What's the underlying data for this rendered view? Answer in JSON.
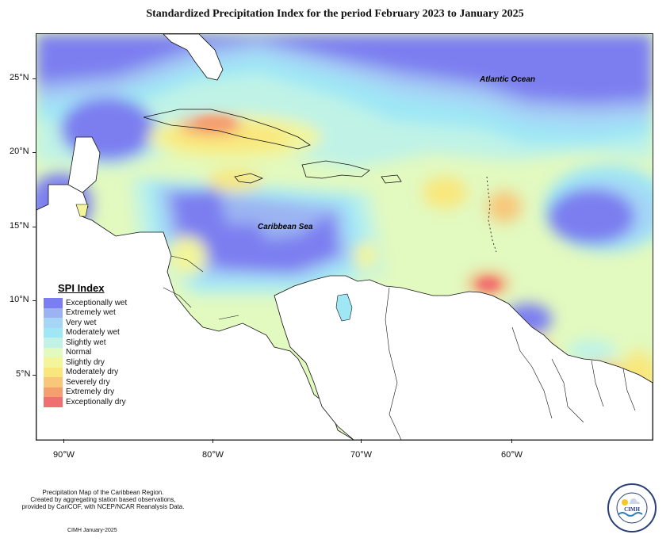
{
  "title": "Standardized Precipitation Index for the period February 2023 to January 2025",
  "lat_labels": [
    "25°N",
    "20°N",
    "15°N",
    "10°N",
    "5°N"
  ],
  "lon_labels": [
    "90°W",
    "80°W",
    "70°W",
    "60°W"
  ],
  "ocean_labels": {
    "atlantic": "Atlantic Ocean",
    "caribbean": "Caribbean Sea"
  },
  "legend": {
    "title": "SPI Index",
    "items": [
      {
        "label": "Exceptionally wet",
        "color": "#7b7ef0"
      },
      {
        "label": "Extremely wet",
        "color": "#9bb3f2"
      },
      {
        "label": "Very wet",
        "color": "#a5d6f6"
      },
      {
        "label": "Moderately wet",
        "color": "#9fe7f5"
      },
      {
        "label": "Slightly wet",
        "color": "#c0f3e6"
      },
      {
        "label": "Normal",
        "color": "#e2f9bf"
      },
      {
        "label": "Slightly dry",
        "color": "#f2f59a"
      },
      {
        "label": "Moderately dry",
        "color": "#f9e77d"
      },
      {
        "label": "Severely dry",
        "color": "#f8c77a"
      },
      {
        "label": "Extremely dry",
        "color": "#f59f6f"
      },
      {
        "label": "Exceptionally dry",
        "color": "#ef7070"
      }
    ]
  },
  "footnote": {
    "line1": "Precipitation Map of the Caribbean Region.",
    "line2": "Created by aggregating station based observations,",
    "line3": "provided by CariCOF, with NCEP/NCAR Reanalysis Data.",
    "credit": "CIMH January-2025"
  },
  "logo": {
    "text": "CIMH",
    "ring_text": "Caribbean Institute for Meteorology and Hydrology"
  }
}
